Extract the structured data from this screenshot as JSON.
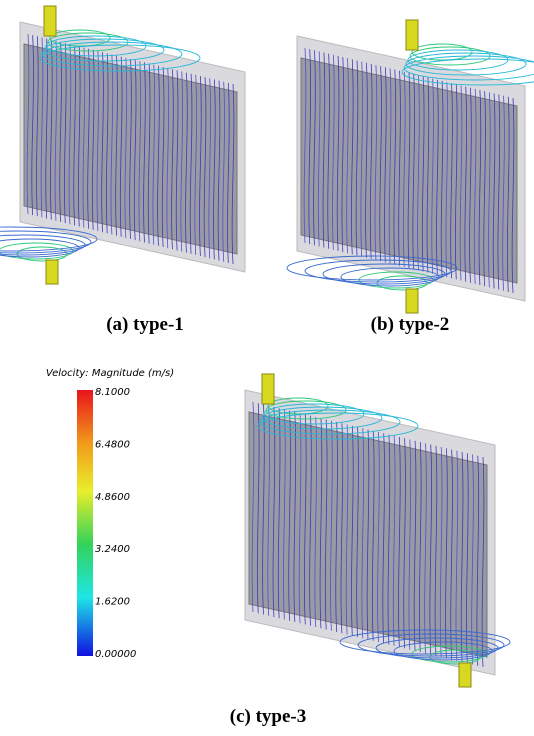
{
  "panels": [
    {
      "caption": "(a)  type-1"
    },
    {
      "caption": "(b)  type-2"
    },
    {
      "caption": "(c)  type-3"
    }
  ],
  "colorbar": {
    "title": "Velocity: Magnitude (m/s)",
    "ticks": [
      "8.1000",
      "6.4800",
      "4.8600",
      "3.2400",
      "1.6200",
      "0.00000"
    ]
  }
}
